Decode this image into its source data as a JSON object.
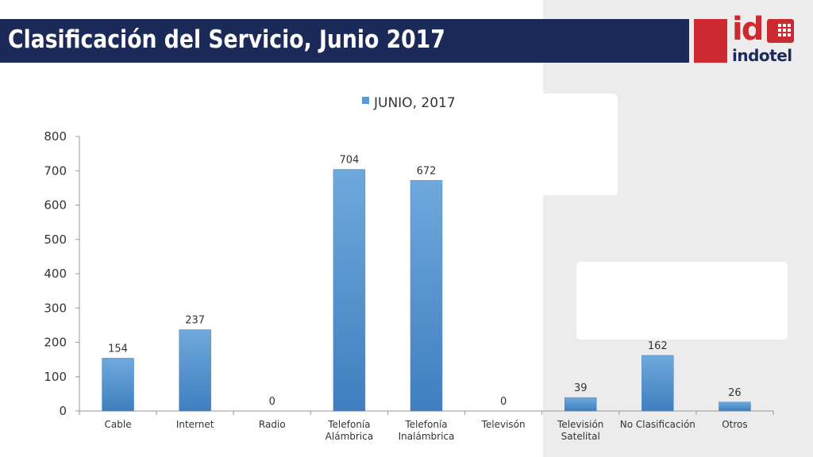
{
  "header": {
    "title": "Clasificación del Servicio, Junio 2017"
  },
  "logo": {
    "mark": "id",
    "wordmark": "indotel"
  },
  "colors": {
    "title_bar": "#1b2a59",
    "logo_red": "#cc2a30",
    "bar": "#5b9bd5",
    "bar_dark": "#4a86c5",
    "axis_text": "#333333"
  },
  "chart_data": {
    "type": "bar",
    "title": "",
    "legend": {
      "entries": [
        "JUNIO, 2017"
      ],
      "placement": "top"
    },
    "categories": [
      "Cable",
      "Internet",
      "Radio",
      "Telefonía Alámbrica",
      "Telefonía Inalámbrica",
      "Televisón",
      "Televisión Satelital",
      "No Clasificación",
      "Otros"
    ],
    "series": [
      {
        "name": "JUNIO, 2017",
        "values": [
          154,
          237,
          0,
          704,
          672,
          0,
          39,
          162,
          26
        ]
      }
    ],
    "data_labels": [
      "154",
      "237",
      "0",
      "704",
      "672",
      "0",
      "39",
      "162",
      "26"
    ],
    "ylim": [
      0,
      800
    ],
    "yticks": [
      0,
      100,
      200,
      300,
      400,
      500,
      600,
      700,
      800
    ],
    "grid": false,
    "xlabel": "",
    "ylabel": ""
  }
}
